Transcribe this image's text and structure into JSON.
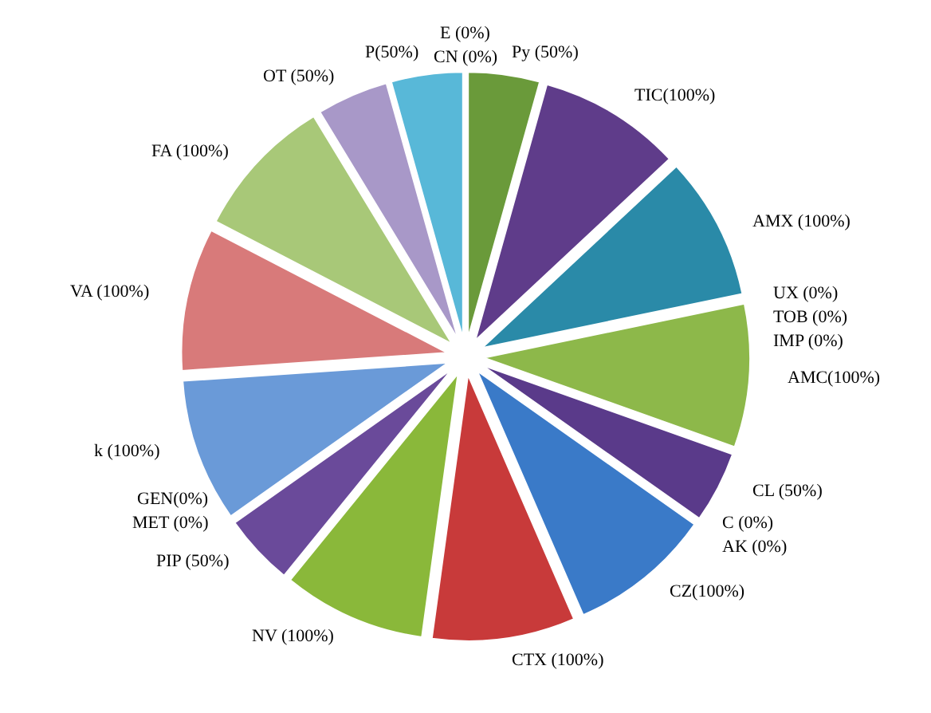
{
  "chart_data": {
    "type": "pie",
    "categories": [
      "Py (50%)",
      "TIC(100%)",
      "AMX (100%)",
      "UX (0%)",
      "TOB (0%)",
      "IMP (0%)",
      "AMC(100%)",
      "CL (50%)",
      "C (0%)",
      "AK (0%)",
      "CZ(100%)",
      "CTX (100%)",
      "NV (100%)",
      "PIP (50%)",
      "MET (0%)",
      "GEN(0%)",
      "k (100%)",
      "VA (100%)",
      "FA (100%)",
      "OT (50%)",
      "P(50%)",
      "CN (0%)",
      "E (0%)"
    ],
    "values": [
      50,
      100,
      100,
      0,
      0,
      0,
      100,
      50,
      0,
      0,
      100,
      100,
      100,
      50,
      0,
      0,
      100,
      100,
      100,
      50,
      50,
      0,
      0
    ],
    "colors": [
      "#6a9a3a",
      "#5f3c8a",
      "#2a8aa8",
      "#888888",
      "#888888",
      "#888888",
      "#8db84a",
      "#5a3a8a",
      "#888888",
      "#888888",
      "#3a7ac8",
      "#c83a3a",
      "#8ab83a",
      "#6a4a9a",
      "#888888",
      "#888888",
      "#6a9ad8",
      "#d87a7a",
      "#a8c878",
      "#a898c8",
      "#58b8d8",
      "#888888",
      "#888888"
    ],
    "legend": false
  }
}
